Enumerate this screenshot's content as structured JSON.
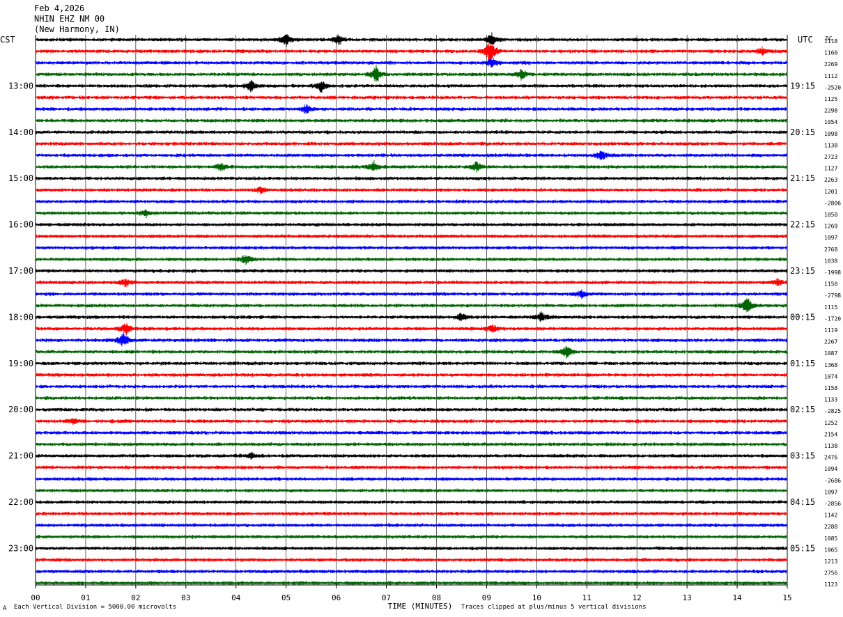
{
  "header": {
    "date": "Feb 4,2026",
    "station": "NHIN EHZ NM 00",
    "location": "(New Harmony, IN)"
  },
  "labels": {
    "left_tz": "CST",
    "right_tz": "UTC",
    "dc": "DC"
  },
  "footer": {
    "scale": "Each Vertical Division = 5000.00 microvolts",
    "clip": "Traces clipped at plus/minus 5 vertical divisions",
    "corner": "A"
  },
  "chart_data": {
    "type": "line",
    "title": "",
    "xlabel": "TIME (MINUTES)",
    "ylabel": "",
    "xlim": [
      0,
      15
    ],
    "x_ticks": [
      "00",
      "01",
      "02",
      "03",
      "04",
      "05",
      "06",
      "07",
      "08",
      "09",
      "10",
      "11",
      "12",
      "13",
      "14",
      "15"
    ],
    "trace_colors": [
      "#000000",
      "#ff0000",
      "#0000ff",
      "#006400"
    ],
    "left_hour_labels": [
      "13:00",
      "14:00",
      "15:00",
      "16:00",
      "17:00",
      "18:00",
      "19:00",
      "20:00",
      "21:00",
      "22:00",
      "23:00"
    ],
    "right_hour_labels": [
      "19:15",
      "20:15",
      "21:15",
      "22:15",
      "23:15",
      "00:15",
      "01:15",
      "02:15",
      "03:15",
      "04:15",
      "05:15"
    ],
    "dc_offsets": [
      "1118",
      "1160",
      "2269",
      "1112",
      "-2520",
      "1125",
      "2298",
      "1054",
      "1098",
      "1138",
      "2723",
      "1127",
      "2263",
      "1201",
      "-2806",
      "1050",
      "1269",
      "1097",
      "2768",
      "1038",
      "-1998",
      "1150",
      "-2798",
      "1115",
      "-1720",
      "1119",
      "2267",
      "1087",
      "1368",
      "1074",
      "1158",
      "1133",
      "-2825",
      "1252",
      "2154",
      "1138",
      "2476",
      "1094",
      "-2686",
      "1097",
      "-2856",
      "1142",
      "2288",
      "1085",
      "1965",
      "1213",
      "2756",
      "1123"
    ],
    "events": [
      {
        "trace": 0,
        "minute": 5.0,
        "amp": 1.0
      },
      {
        "trace": 0,
        "minute": 6.05,
        "amp": 0.8
      },
      {
        "trace": 0,
        "minute": 9.1,
        "amp": 1.1
      },
      {
        "trace": 1,
        "minute": 9.07,
        "amp": 2.0
      },
      {
        "trace": 1,
        "minute": 14.5,
        "amp": 0.6
      },
      {
        "trace": 2,
        "minute": 9.1,
        "amp": 0.8
      },
      {
        "trace": 3,
        "minute": 6.8,
        "amp": 1.4
      },
      {
        "trace": 3,
        "minute": 9.7,
        "amp": 0.8
      },
      {
        "trace": 4,
        "minute": 4.3,
        "amp": 1.0
      },
      {
        "trace": 4,
        "minute": 5.7,
        "amp": 1.0
      },
      {
        "trace": 6,
        "minute": 5.4,
        "amp": 0.7
      },
      {
        "trace": 10,
        "minute": 11.3,
        "amp": 0.9
      },
      {
        "trace": 11,
        "minute": 3.7,
        "amp": 0.7
      },
      {
        "trace": 11,
        "minute": 6.75,
        "amp": 0.8
      },
      {
        "trace": 11,
        "minute": 8.8,
        "amp": 0.7
      },
      {
        "trace": 13,
        "minute": 4.5,
        "amp": 0.5
      },
      {
        "trace": 15,
        "minute": 2.2,
        "amp": 0.6
      },
      {
        "trace": 19,
        "minute": 4.2,
        "amp": 0.8
      },
      {
        "trace": 21,
        "minute": 1.8,
        "amp": 0.6
      },
      {
        "trace": 21,
        "minute": 14.8,
        "amp": 0.5
      },
      {
        "trace": 22,
        "minute": 10.9,
        "amp": 0.6
      },
      {
        "trace": 23,
        "minute": 14.2,
        "amp": 1.3
      },
      {
        "trace": 24,
        "minute": 8.5,
        "amp": 0.6
      },
      {
        "trace": 24,
        "minute": 10.1,
        "amp": 0.8
      },
      {
        "trace": 25,
        "minute": 1.8,
        "amp": 0.9
      },
      {
        "trace": 25,
        "minute": 9.1,
        "amp": 0.7
      },
      {
        "trace": 26,
        "minute": 1.75,
        "amp": 1.1
      },
      {
        "trace": 27,
        "minute": 10.6,
        "amp": 0.9
      },
      {
        "trace": 33,
        "minute": 0.75,
        "amp": 0.5
      },
      {
        "trace": 36,
        "minute": 4.3,
        "amp": 0.5
      }
    ]
  }
}
